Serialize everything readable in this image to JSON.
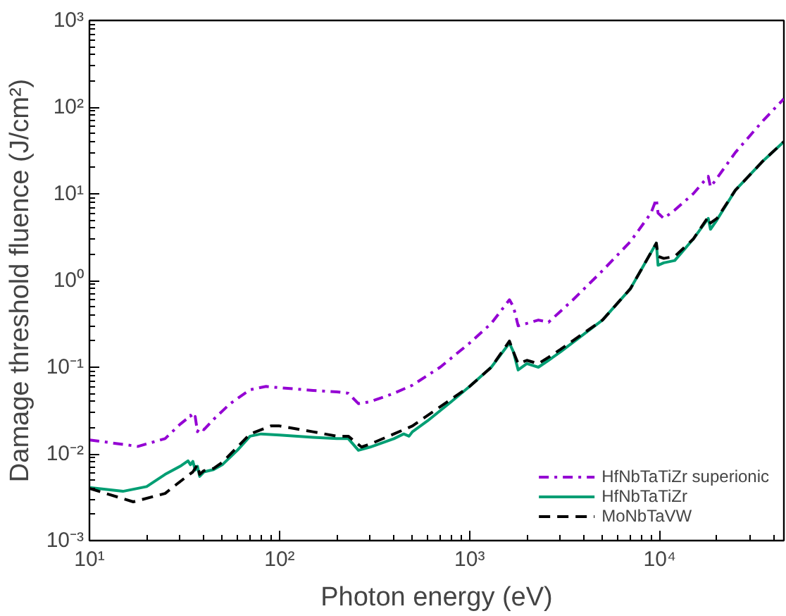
{
  "chart_data": {
    "type": "line",
    "xlabel": "Photon energy (eV)",
    "ylabel": "Damage threshold fluence (J/cm²)",
    "log": "xy",
    "grid": false,
    "legend": "bottom right",
    "xlim": [
      10,
      45000
    ],
    "ylim": [
      0.001,
      1000
    ],
    "xticks": [
      {
        "value": 10,
        "label": "10¹"
      },
      {
        "value": 100,
        "label": "10²"
      },
      {
        "value": 1000,
        "label": "10³"
      },
      {
        "value": 10000,
        "label": "10⁴"
      }
    ],
    "yticks": [
      {
        "value": 0.001,
        "label": "10⁻³"
      },
      {
        "value": 0.01,
        "label": "10⁻²"
      },
      {
        "value": 0.1,
        "label": "10⁻¹"
      },
      {
        "value": 1,
        "label": "10⁰"
      },
      {
        "value": 10,
        "label": "10¹"
      },
      {
        "value": 100,
        "label": "10²"
      },
      {
        "value": 1000,
        "label": "10³"
      }
    ],
    "series": [
      {
        "name": "HfNbTaTiZr superionic",
        "color": "#9400d3",
        "line_style": "dashdot",
        "x": [
          10,
          18,
          25,
          30,
          33,
          34,
          35,
          36,
          37,
          38,
          40,
          45,
          55,
          70,
          85,
          100,
          150,
          200,
          230,
          260,
          300,
          400,
          500,
          700,
          1000,
          1300,
          1620,
          1700,
          1800,
          2000,
          2300,
          2600,
          3500,
          5000,
          7000,
          9000,
          9600,
          9800,
          10500,
          12000,
          15000,
          18000,
          18500,
          19500,
          25000,
          35000,
          45000
        ],
        "values": [
          0.0145,
          0.0122,
          0.015,
          0.022,
          0.026,
          0.028,
          0.025,
          0.027,
          0.018,
          0.02,
          0.019,
          0.025,
          0.038,
          0.055,
          0.06,
          0.058,
          0.054,
          0.052,
          0.05,
          0.038,
          0.04,
          0.05,
          0.062,
          0.1,
          0.19,
          0.32,
          0.6,
          0.5,
          0.3,
          0.32,
          0.35,
          0.33,
          0.6,
          1.3,
          2.8,
          6.0,
          8.7,
          6,
          5.2,
          6.5,
          10,
          15.9,
          12,
          14,
          30,
          70,
          125
        ]
      },
      {
        "name": "HfNbTaTiZr",
        "color": "#009e73",
        "line_style": "solid",
        "x": [
          10,
          15,
          20,
          25,
          30,
          33,
          34,
          35,
          36,
          37,
          38,
          40,
          45,
          50,
          60,
          70,
          80,
          100,
          150,
          200,
          230,
          260,
          300,
          400,
          450,
          480,
          500,
          600,
          800,
          1000,
          1300,
          1620,
          1700,
          1800,
          2000,
          2300,
          2600,
          3000,
          5000,
          7000,
          9600,
          9800,
          10500,
          12000,
          15000,
          18000,
          18500,
          20000,
          25000,
          35000,
          45000
        ],
        "values": [
          0.0041,
          0.0037,
          0.0042,
          0.0058,
          0.0072,
          0.0083,
          0.0075,
          0.0082,
          0.0065,
          0.0072,
          0.0055,
          0.0062,
          0.0066,
          0.0075,
          0.011,
          0.016,
          0.017,
          0.0165,
          0.0155,
          0.015,
          0.015,
          0.011,
          0.012,
          0.015,
          0.017,
          0.016,
          0.018,
          0.024,
          0.04,
          0.06,
          0.1,
          0.19,
          0.15,
          0.093,
          0.11,
          0.1,
          0.12,
          0.15,
          0.35,
          0.8,
          2.7,
          1.5,
          1.6,
          1.7,
          3,
          5.2,
          3.9,
          5,
          11,
          24,
          40
        ]
      },
      {
        "name": "MoNbTaVW",
        "color": "#000000",
        "line_style": "dashed",
        "x": [
          10,
          17,
          25,
          30,
          35,
          37,
          38,
          40,
          45,
          50,
          60,
          70,
          90,
          100,
          150,
          200,
          230,
          270,
          300,
          400,
          500,
          700,
          1000,
          1300,
          1620,
          1700,
          1800,
          2000,
          2300,
          2600,
          3000,
          5000,
          7000,
          9600,
          9800,
          10500,
          12000,
          15000,
          18000,
          18500,
          20000,
          25000,
          35000,
          45000
        ],
        "values": [
          0.004,
          0.0028,
          0.0035,
          0.0048,
          0.0062,
          0.0075,
          0.0058,
          0.0064,
          0.0068,
          0.008,
          0.012,
          0.017,
          0.021,
          0.021,
          0.018,
          0.016,
          0.016,
          0.012,
          0.013,
          0.017,
          0.021,
          0.035,
          0.06,
          0.1,
          0.2,
          0.15,
          0.11,
          0.12,
          0.11,
          0.13,
          0.16,
          0.35,
          0.8,
          2.7,
          1.9,
          1.8,
          1.9,
          3,
          5.4,
          4.6,
          5.2,
          11,
          24,
          40
        ]
      }
    ]
  }
}
